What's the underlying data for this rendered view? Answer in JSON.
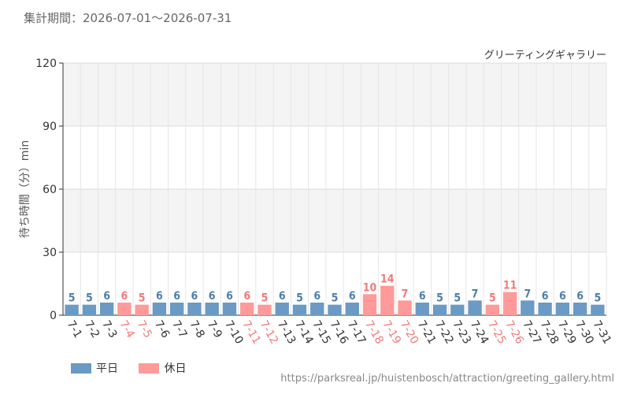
{
  "header": {
    "period_label": "集計期間：2026-07-01～2026-07-31"
  },
  "chart_data": {
    "type": "bar",
    "title": "グリーティングギャラリー",
    "ylabel": "待ち時間（分）min",
    "xlabel": "",
    "ylim": [
      0,
      120
    ],
    "yticks": [
      0,
      30,
      60,
      90,
      120
    ],
    "grid": true,
    "categories": [
      "7-1",
      "7-2",
      "7-3",
      "7-4",
      "7-5",
      "7-6",
      "7-7",
      "7-8",
      "7-9",
      "7-10",
      "7-11",
      "7-12",
      "7-13",
      "7-14",
      "7-15",
      "7-16",
      "7-17",
      "7-18",
      "7-19",
      "7-20",
      "7-21",
      "7-22",
      "7-23",
      "7-24",
      "7-25",
      "7-26",
      "7-27",
      "7-28",
      "7-29",
      "7-30",
      "7-31"
    ],
    "values": [
      5,
      5,
      6,
      6,
      5,
      6,
      6,
      6,
      6,
      6,
      6,
      5,
      6,
      5,
      6,
      5,
      6,
      10,
      14,
      7,
      6,
      5,
      5,
      7,
      5,
      11,
      7,
      6,
      6,
      6,
      5
    ],
    "day_type": [
      "平日",
      "平日",
      "平日",
      "休日",
      "休日",
      "平日",
      "平日",
      "平日",
      "平日",
      "平日",
      "休日",
      "休日",
      "平日",
      "平日",
      "平日",
      "平日",
      "平日",
      "休日",
      "休日",
      "休日",
      "平日",
      "平日",
      "平日",
      "平日",
      "休日",
      "休日",
      "平日",
      "平日",
      "平日",
      "平日",
      "平日"
    ],
    "series": [
      {
        "name": "平日",
        "color": "#6b9ac4"
      },
      {
        "name": "休日",
        "color": "#ff9a9a"
      }
    ],
    "label_colors": {
      "平日": "#4e7fa8",
      "休日": "#f07a7a"
    },
    "legend_position": "bottom-left"
  },
  "legend": {
    "weekday_label": "平日",
    "holiday_label": "休日",
    "weekday_color": "#6b9ac4",
    "holiday_color": "#ff9a9a"
  },
  "source": {
    "url_text": "https://parksreal.jp/huistenbosch/attraction/greeting_gallery.html"
  }
}
